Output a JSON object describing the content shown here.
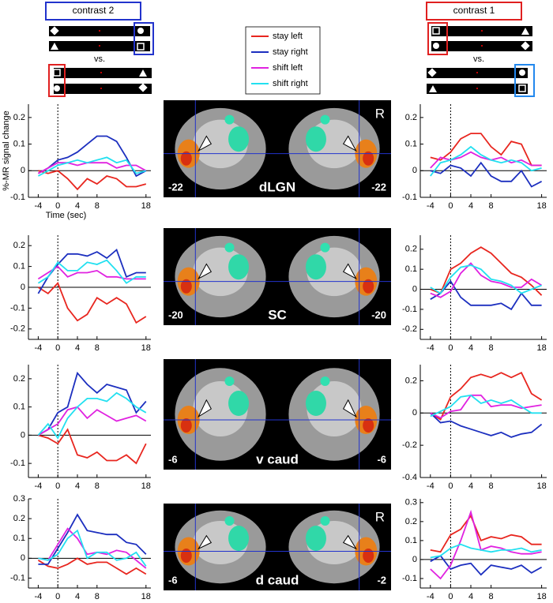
{
  "header": {
    "left_contrast": "contrast 2",
    "right_contrast": "contrast 1",
    "vs": "vs."
  },
  "brain_panels": [
    {
      "region": "dLGN",
      "left_coord": "-22",
      "right_coord": "-22",
      "side": "R"
    },
    {
      "region": "SC",
      "left_coord": "-20",
      "right_coord": "-20"
    },
    {
      "region": "v caud",
      "left_coord": "-6",
      "right_coord": "-6"
    },
    {
      "region": "d caud",
      "left_coord": "-6",
      "right_coord": "-2",
      "side": "R"
    }
  ],
  "chart_data": [
    {
      "type": "line",
      "ylabel": "%-MR signal change",
      "xlabel": "Time (sec)",
      "x": [
        -4,
        -2,
        0,
        2,
        4,
        6,
        8,
        10,
        12,
        14,
        16,
        18
      ],
      "xlim": [
        -6,
        19
      ],
      "xticks": [
        -4,
        0,
        4,
        8,
        18
      ],
      "ylim": [
        -0.1,
        0.25
      ],
      "yticks": [
        -0.1,
        0,
        0.1,
        0.2
      ],
      "series": [
        {
          "name": "stay left",
          "color": "#e8261f",
          "values": [
            0,
            -0.01,
            0,
            -0.03,
            -0.07,
            -0.03,
            -0.05,
            -0.02,
            -0.03,
            -0.06,
            -0.06,
            -0.05
          ]
        },
        {
          "name": "stay right",
          "color": "#1c2fbf",
          "values": [
            -0.01,
            0.01,
            0.04,
            0.05,
            0.07,
            0.1,
            0.13,
            0.13,
            0.11,
            0.05,
            -0.02,
            0
          ]
        },
        {
          "name": "shift left",
          "color": "#e022e0",
          "values": [
            -0.01,
            0.01,
            0.03,
            0.03,
            0.02,
            0.03,
            0.03,
            0.03,
            0.01,
            0.02,
            0.02,
            0
          ]
        },
        {
          "name": "shift right",
          "color": "#22e0f0",
          "values": [
            -0.02,
            0,
            0.02,
            0.03,
            0.04,
            0.03,
            0.04,
            0.05,
            0.03,
            0.04,
            -0.01,
            0
          ]
        }
      ]
    },
    {
      "type": "line",
      "x": [
        -4,
        -2,
        0,
        2,
        4,
        6,
        8,
        10,
        12,
        14,
        16,
        18
      ],
      "xlim": [
        -6,
        19
      ],
      "xticks": [
        -4,
        0,
        4,
        8,
        18
      ],
      "ylim": [
        -0.1,
        0.25
      ],
      "yticks": [
        -0.1,
        0,
        0.1,
        0.2
      ],
      "series": [
        {
          "name": "stay left",
          "color": "#e8261f",
          "values": [
            0.05,
            0.04,
            0.07,
            0.12,
            0.14,
            0.14,
            0.09,
            0.06,
            0.11,
            0.1,
            0.02,
            0.02
          ]
        },
        {
          "name": "stay right",
          "color": "#1c2fbf",
          "values": [
            0,
            -0.01,
            0.02,
            0.01,
            -0.02,
            0.03,
            -0.02,
            -0.04,
            -0.04,
            0,
            -0.06,
            -0.04
          ]
        },
        {
          "name": "shift left",
          "color": "#e022e0",
          "values": [
            0.01,
            0.05,
            0.04,
            0.05,
            0.07,
            0.05,
            0.04,
            0.05,
            0.03,
            0.04,
            0.02,
            0.02
          ]
        },
        {
          "name": "shift right",
          "color": "#22e0f0",
          "values": [
            -0.02,
            0.03,
            0.04,
            0.06,
            0.09,
            0.06,
            0.04,
            0.03,
            0.04,
            0.03,
            0,
            0.01
          ]
        }
      ]
    },
    {
      "type": "line",
      "x": [
        -4,
        -2,
        0,
        2,
        4,
        6,
        8,
        10,
        12,
        14,
        16,
        18
      ],
      "xlim": [
        -6,
        19
      ],
      "xticks": [
        -4,
        0,
        4,
        8,
        18
      ],
      "ylim": [
        -0.25,
        0.25
      ],
      "yticks": [
        -0.2,
        -0.1,
        0,
        0.1,
        0.2
      ],
      "series": [
        {
          "name": "stay left",
          "color": "#e8261f",
          "values": [
            0,
            -0.03,
            0.02,
            -0.1,
            -0.16,
            -0.13,
            -0.05,
            -0.08,
            -0.05,
            -0.08,
            -0.17,
            -0.14
          ]
        },
        {
          "name": "stay right",
          "color": "#1c2fbf",
          "values": [
            -0.03,
            0.05,
            0.11,
            0.16,
            0.16,
            0.15,
            0.17,
            0.14,
            0.18,
            0.05,
            0.07,
            0.07
          ]
        },
        {
          "name": "shift left",
          "color": "#e022e0",
          "values": [
            0.04,
            0.07,
            0.1,
            0.05,
            0.07,
            0.07,
            0.08,
            0.05,
            0.05,
            0.04,
            0.04,
            0.04
          ]
        },
        {
          "name": "shift right",
          "color": "#22e0f0",
          "values": [
            0.02,
            0.05,
            0.12,
            0.08,
            0.08,
            0.12,
            0.11,
            0.13,
            0.08,
            0.02,
            0.05,
            0.05
          ]
        }
      ]
    },
    {
      "type": "line",
      "x": [
        -4,
        -2,
        0,
        2,
        4,
        6,
        8,
        10,
        12,
        14,
        16,
        18
      ],
      "xlim": [
        -6,
        19
      ],
      "xticks": [
        -4,
        0,
        4,
        8,
        18
      ],
      "ylim": [
        -0.25,
        0.27
      ],
      "yticks": [
        -0.2,
        -0.1,
        0,
        0.1,
        0.2
      ],
      "series": [
        {
          "name": "stay left",
          "color": "#e8261f",
          "values": [
            0,
            -0.02,
            0.1,
            0.13,
            0.18,
            0.21,
            0.18,
            0.13,
            0.08,
            0.06,
            0.02,
            -0.03
          ]
        },
        {
          "name": "stay right",
          "color": "#1c2fbf",
          "values": [
            -0.05,
            -0.02,
            0.04,
            -0.04,
            -0.08,
            -0.08,
            -0.08,
            -0.07,
            -0.1,
            -0.02,
            -0.08,
            -0.08
          ]
        },
        {
          "name": "shift left",
          "color": "#e022e0",
          "values": [
            -0.02,
            -0.04,
            -0.01,
            0.08,
            0.13,
            0.07,
            0.04,
            0.03,
            0.01,
            0.01,
            0.05,
            0.02
          ]
        },
        {
          "name": "shift right",
          "color": "#22e0f0",
          "values": [
            0.01,
            -0.02,
            0.06,
            0.11,
            0.12,
            0.1,
            0.05,
            0.04,
            0.02,
            -0.02,
            0,
            0.02
          ]
        }
      ]
    },
    {
      "type": "line",
      "x": [
        -4,
        -2,
        0,
        2,
        4,
        6,
        8,
        10,
        12,
        14,
        16,
        18
      ],
      "xlim": [
        -6,
        19
      ],
      "xticks": [
        -4,
        0,
        4,
        8,
        18
      ],
      "ylim": [
        -0.15,
        0.25
      ],
      "yticks": [
        -0.1,
        0,
        0.1,
        0.2
      ],
      "series": [
        {
          "name": "stay left",
          "color": "#e8261f",
          "values": [
            0,
            -0.01,
            -0.03,
            0.02,
            -0.07,
            -0.08,
            -0.06,
            -0.09,
            -0.09,
            -0.07,
            -0.1,
            -0.03
          ]
        },
        {
          "name": "stay right",
          "color": "#1c2fbf",
          "values": [
            0,
            0.02,
            0.08,
            0.1,
            0.22,
            0.18,
            0.15,
            0.18,
            0.17,
            0.16,
            0.08,
            0.12
          ]
        },
        {
          "name": "shift left",
          "color": "#e022e0",
          "values": [
            0,
            0.02,
            0.04,
            0.09,
            0.1,
            0.06,
            0.09,
            0.07,
            0.05,
            0.06,
            0.07,
            0.05
          ]
        },
        {
          "name": "shift right",
          "color": "#22e0f0",
          "values": [
            0,
            0.04,
            -0.01,
            0.06,
            0.1,
            0.13,
            0.13,
            0.12,
            0.15,
            0.13,
            0.1,
            0.08
          ]
        }
      ]
    },
    {
      "type": "line",
      "x": [
        -4,
        -2,
        0,
        2,
        4,
        6,
        8,
        10,
        12,
        14,
        16,
        18
      ],
      "xlim": [
        -6,
        19
      ],
      "xticks": [
        -4,
        0,
        4,
        8,
        18
      ],
      "ylim": [
        -0.4,
        0.3
      ],
      "yticks": [
        -0.4,
        -0.2,
        0,
        0.2
      ],
      "series": [
        {
          "name": "stay left",
          "color": "#e8261f",
          "values": [
            0,
            -0.04,
            0.1,
            0.15,
            0.22,
            0.24,
            0.22,
            0.25,
            0.22,
            0.25,
            0.12,
            0.08
          ]
        },
        {
          "name": "stay right",
          "color": "#1c2fbf",
          "values": [
            0,
            -0.06,
            -0.05,
            -0.08,
            -0.1,
            -0.12,
            -0.14,
            -0.12,
            -0.15,
            -0.13,
            -0.12,
            -0.07
          ]
        },
        {
          "name": "shift left",
          "color": "#e022e0",
          "values": [
            0,
            -0.03,
            0.01,
            0.02,
            0.11,
            0.11,
            0.04,
            0.05,
            0.05,
            0.03,
            0.04,
            0.05
          ]
        },
        {
          "name": "shift right",
          "color": "#22e0f0",
          "values": [
            -0.02,
            0.01,
            0.04,
            0.1,
            0.11,
            0.06,
            0.08,
            0.06,
            0.08,
            0.04,
            0,
            0
          ]
        }
      ]
    },
    {
      "type": "line",
      "x": [
        -4,
        -2,
        0,
        2,
        4,
        6,
        8,
        10,
        12,
        14,
        16,
        18
      ],
      "xlim": [
        -6,
        19
      ],
      "xticks": [
        -4,
        0,
        4,
        8,
        18
      ],
      "ylim": [
        -0.15,
        0.3
      ],
      "yticks": [
        -0.1,
        0,
        0.1,
        0.2,
        0.3
      ],
      "series": [
        {
          "name": "stay left",
          "color": "#e8261f",
          "values": [
            -0.01,
            -0.04,
            -0.05,
            -0.03,
            0,
            -0.03,
            -0.02,
            -0.02,
            -0.05,
            -0.08,
            -0.05,
            -0.08
          ]
        },
        {
          "name": "stay right",
          "color": "#1c2fbf",
          "values": [
            -0.03,
            -0.03,
            0.05,
            0.13,
            0.22,
            0.14,
            0.13,
            0.12,
            0.12,
            0.08,
            0.07,
            0.02
          ]
        },
        {
          "name": "shift left",
          "color": "#e022e0",
          "values": [
            0,
            -0.01,
            0.07,
            0.15,
            0.1,
            0.02,
            0.03,
            0.02,
            0.04,
            0.03,
            -0.01,
            -0.05
          ]
        },
        {
          "name": "shift right",
          "color": "#22e0f0",
          "values": [
            0,
            -0.01,
            0.02,
            0.1,
            0.14,
            0,
            0.03,
            0.03,
            -0.01,
            0,
            0.03,
            -0.04
          ]
        }
      ]
    },
    {
      "type": "line",
      "x": [
        -4,
        -2,
        0,
        2,
        4,
        6,
        8,
        10,
        12,
        14,
        16,
        18
      ],
      "xlim": [
        -6,
        19
      ],
      "xticks": [
        -4,
        0,
        4,
        8,
        18
      ],
      "ylim": [
        -0.15,
        0.32
      ],
      "yticks": [
        -0.1,
        0,
        0.1,
        0.2,
        0.3
      ],
      "series": [
        {
          "name": "stay left",
          "color": "#e8261f",
          "values": [
            0.05,
            0.04,
            0.13,
            0.16,
            0.23,
            0.1,
            0.12,
            0.11,
            0.13,
            0.12,
            0.08,
            0.08
          ]
        },
        {
          "name": "stay right",
          "color": "#1c2fbf",
          "values": [
            -0.01,
            0.02,
            -0.05,
            -0.03,
            -0.02,
            -0.08,
            -0.03,
            -0.04,
            -0.05,
            -0.03,
            -0.07,
            -0.04
          ]
        },
        {
          "name": "shift left",
          "color": "#e022e0",
          "values": [
            -0.05,
            -0.1,
            -0.03,
            0.1,
            0.25,
            0.05,
            0.07,
            0.06,
            0.04,
            0.03,
            0.03,
            0.04
          ]
        },
        {
          "name": "shift right",
          "color": "#22e0f0",
          "values": [
            0.01,
            0.02,
            0.06,
            0.08,
            0.06,
            0.05,
            0.04,
            0.05,
            0.05,
            0.06,
            0.04,
            0.05
          ]
        }
      ]
    }
  ]
}
